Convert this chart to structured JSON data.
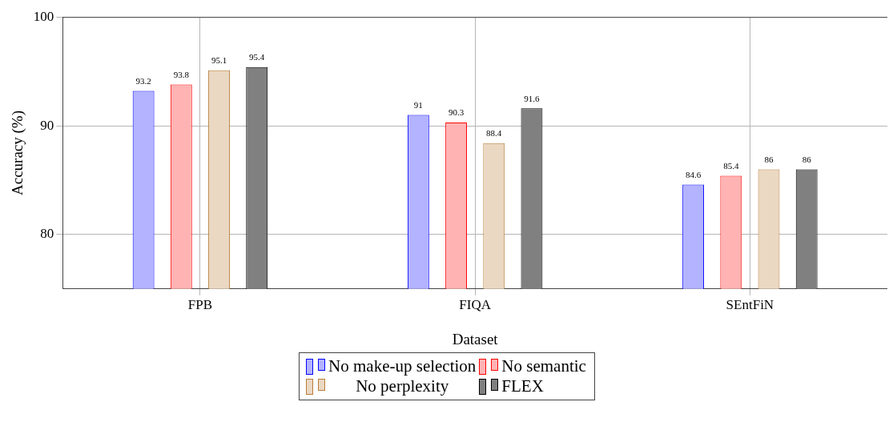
{
  "chart_data": {
    "type": "bar",
    "xlabel": "Dataset",
    "ylabel": "Accuracy (%)",
    "categories": [
      "FPB",
      "FIQA",
      "SEntFiN"
    ],
    "series": [
      {
        "name": "No make-up selection",
        "color": "#b3b3ff",
        "values": [
          93.2,
          91,
          84.6
        ]
      },
      {
        "name": "No semantic",
        "color": "#ffb3b3",
        "values": [
          93.8,
          90.3,
          85.4
        ]
      },
      {
        "name": "No perplexity",
        "color": "#ead8c3",
        "values": [
          95.1,
          88.4,
          86
        ]
      },
      {
        "name": "FLEX",
        "color": "#808080",
        "values": [
          95.4,
          91.6,
          86
        ]
      }
    ],
    "ylim": [
      75,
      100
    ],
    "yticks": [
      80,
      90,
      100
    ],
    "grid": true,
    "data_labels": true,
    "legend": "bottom"
  }
}
